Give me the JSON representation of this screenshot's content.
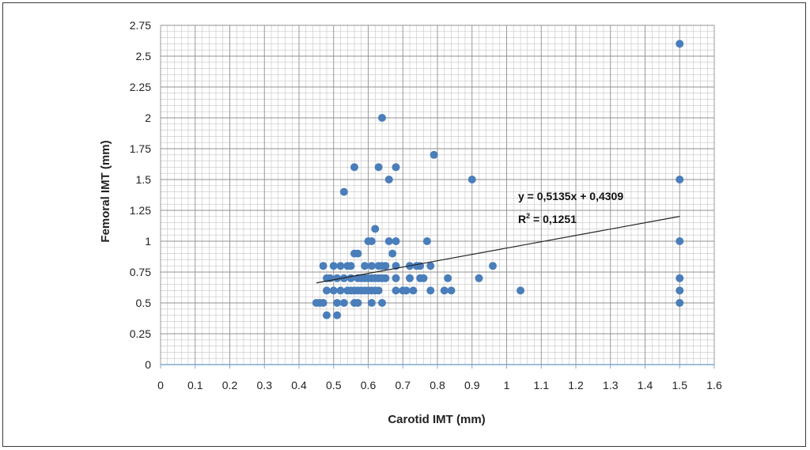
{
  "chart_data": {
    "type": "scatter",
    "xlabel": "Carotid IMT (mm)",
    "ylabel": "Femoral IMT (mm)",
    "xlim": [
      0,
      1.6
    ],
    "ylim": [
      0,
      2.75
    ],
    "x_ticks": [
      "0",
      "0.1",
      "0.2",
      "0.3",
      "0.4",
      "0.5",
      "0.6",
      "0.7",
      "0.8",
      "0.9",
      "1",
      "1.1",
      "1.2",
      "1.3",
      "1.4",
      "1.5",
      "1.6"
    ],
    "y_ticks": [
      "0",
      "0.25",
      "0.5",
      "0.75",
      "1",
      "1.25",
      "1.5",
      "1.75",
      "2",
      "2.25",
      "2.5",
      "2.75"
    ],
    "grid": true,
    "marker_color": "#4a7ebb",
    "trendline": {
      "equation": "y = 0,5135x + 0,4309",
      "r_squared_prefix": "R",
      "r_squared_sup": "2",
      "r_squared_value": " = 0,1251",
      "slope": 0.5135,
      "intercept": 0.4309,
      "x_range": [
        0.45,
        1.5
      ],
      "color": "#222222"
    },
    "points": [
      {
        "x": 0.45,
        "y": 0.5
      },
      {
        "x": 0.46,
        "y": 0.5
      },
      {
        "x": 0.47,
        "y": 0.5
      },
      {
        "x": 0.47,
        "y": 0.8
      },
      {
        "x": 0.48,
        "y": 0.4
      },
      {
        "x": 0.48,
        "y": 0.6
      },
      {
        "x": 0.48,
        "y": 0.7
      },
      {
        "x": 0.49,
        "y": 0.7
      },
      {
        "x": 0.5,
        "y": 0.6
      },
      {
        "x": 0.5,
        "y": 0.8
      },
      {
        "x": 0.51,
        "y": 0.4
      },
      {
        "x": 0.51,
        "y": 0.5
      },
      {
        "x": 0.51,
        "y": 0.7
      },
      {
        "x": 0.52,
        "y": 0.6
      },
      {
        "x": 0.52,
        "y": 0.8
      },
      {
        "x": 0.53,
        "y": 0.5
      },
      {
        "x": 0.53,
        "y": 0.7
      },
      {
        "x": 0.53,
        "y": 1.4
      },
      {
        "x": 0.54,
        "y": 0.6
      },
      {
        "x": 0.54,
        "y": 0.8
      },
      {
        "x": 0.55,
        "y": 0.6
      },
      {
        "x": 0.55,
        "y": 0.7
      },
      {
        "x": 0.55,
        "y": 0.8
      },
      {
        "x": 0.56,
        "y": 0.5
      },
      {
        "x": 0.56,
        "y": 0.6
      },
      {
        "x": 0.56,
        "y": 0.9
      },
      {
        "x": 0.56,
        "y": 1.6
      },
      {
        "x": 0.57,
        "y": 0.5
      },
      {
        "x": 0.57,
        "y": 0.6
      },
      {
        "x": 0.57,
        "y": 0.7
      },
      {
        "x": 0.57,
        "y": 0.9
      },
      {
        "x": 0.58,
        "y": 0.6
      },
      {
        "x": 0.58,
        "y": 0.7
      },
      {
        "x": 0.59,
        "y": 0.6
      },
      {
        "x": 0.59,
        "y": 0.7
      },
      {
        "x": 0.59,
        "y": 0.8
      },
      {
        "x": 0.6,
        "y": 0.6
      },
      {
        "x": 0.6,
        "y": 0.7
      },
      {
        "x": 0.6,
        "y": 1.0
      },
      {
        "x": 0.61,
        "y": 0.5
      },
      {
        "x": 0.61,
        "y": 0.6
      },
      {
        "x": 0.61,
        "y": 0.7
      },
      {
        "x": 0.61,
        "y": 0.8
      },
      {
        "x": 0.61,
        "y": 1.0
      },
      {
        "x": 0.62,
        "y": 0.6
      },
      {
        "x": 0.62,
        "y": 0.7
      },
      {
        "x": 0.62,
        "y": 1.1
      },
      {
        "x": 0.63,
        "y": 0.6
      },
      {
        "x": 0.63,
        "y": 0.7
      },
      {
        "x": 0.63,
        "y": 0.8
      },
      {
        "x": 0.63,
        "y": 1.6
      },
      {
        "x": 0.64,
        "y": 0.5
      },
      {
        "x": 0.64,
        "y": 0.7
      },
      {
        "x": 0.64,
        "y": 0.8
      },
      {
        "x": 0.64,
        "y": 2.0
      },
      {
        "x": 0.65,
        "y": 0.7
      },
      {
        "x": 0.65,
        "y": 0.8
      },
      {
        "x": 0.66,
        "y": 1.0
      },
      {
        "x": 0.66,
        "y": 1.5
      },
      {
        "x": 0.67,
        "y": 0.9
      },
      {
        "x": 0.68,
        "y": 0.6
      },
      {
        "x": 0.68,
        "y": 0.7
      },
      {
        "x": 0.68,
        "y": 0.8
      },
      {
        "x": 0.68,
        "y": 1.0
      },
      {
        "x": 0.68,
        "y": 1.6
      },
      {
        "x": 0.7,
        "y": 0.6
      },
      {
        "x": 0.71,
        "y": 0.6
      },
      {
        "x": 0.72,
        "y": 0.7
      },
      {
        "x": 0.72,
        "y": 0.8
      },
      {
        "x": 0.73,
        "y": 0.6
      },
      {
        "x": 0.74,
        "y": 0.8
      },
      {
        "x": 0.75,
        "y": 0.7
      },
      {
        "x": 0.75,
        "y": 0.8
      },
      {
        "x": 0.76,
        "y": 0.7
      },
      {
        "x": 0.77,
        "y": 1.0
      },
      {
        "x": 0.78,
        "y": 0.6
      },
      {
        "x": 0.78,
        "y": 0.8
      },
      {
        "x": 0.79,
        "y": 1.7
      },
      {
        "x": 0.82,
        "y": 0.6
      },
      {
        "x": 0.83,
        "y": 0.7
      },
      {
        "x": 0.84,
        "y": 0.6
      },
      {
        "x": 0.9,
        "y": 1.5
      },
      {
        "x": 0.92,
        "y": 0.7
      },
      {
        "x": 0.96,
        "y": 0.8
      },
      {
        "x": 1.04,
        "y": 0.6
      },
      {
        "x": 1.5,
        "y": 0.5
      },
      {
        "x": 1.5,
        "y": 0.6
      },
      {
        "x": 1.5,
        "y": 0.7
      },
      {
        "x": 1.5,
        "y": 1.0
      },
      {
        "x": 1.5,
        "y": 1.5
      },
      {
        "x": 1.5,
        "y": 2.6
      }
    ]
  }
}
